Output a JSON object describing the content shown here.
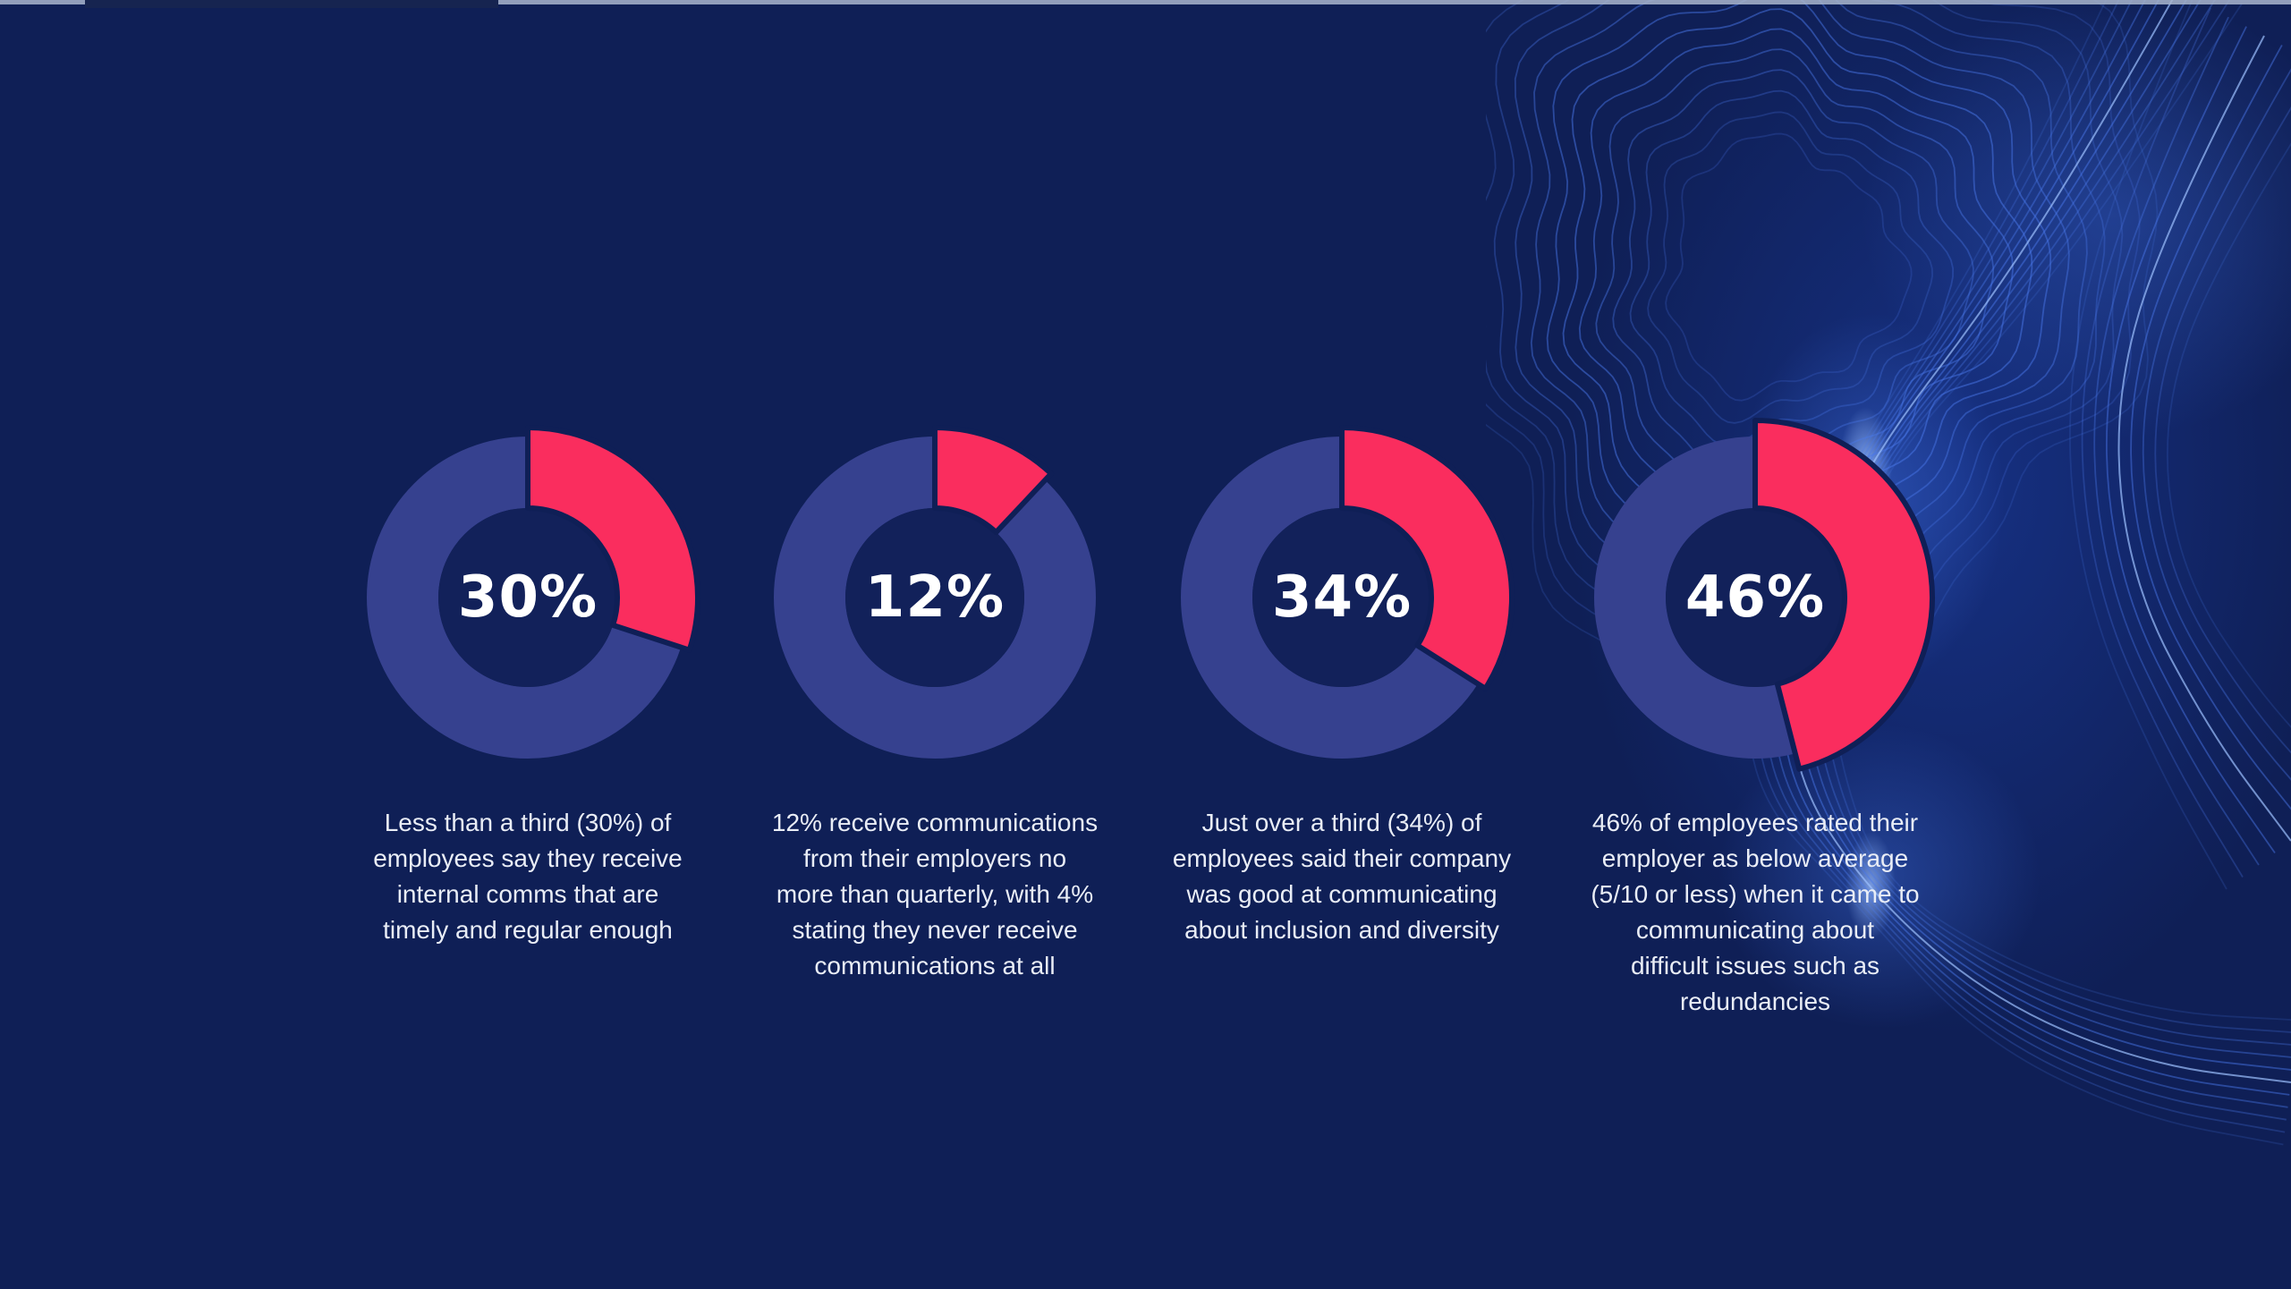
{
  "colors": {
    "background": "#0F1F56",
    "donut_track_blue": "#36418F",
    "donut_highlight_pink": "#FA2D5E",
    "donut_hole": "#12215A",
    "center_label_text": "#FFFFFF",
    "caption_text": "#E9EDF6",
    "wave_line_blue": "#4A78EA",
    "wave_bright_blue": "#9CC0FF",
    "wave_glow_blue": "#1C3FA8",
    "top_strip_light": "#A9B6CE",
    "top_strip_dark": "#18264F"
  },
  "chart_data": [
    {
      "type": "pie",
      "style": "donut",
      "unit": "%",
      "center_label": "30%",
      "labels": [
        "highlighted",
        "remainder"
      ],
      "values": [
        30,
        70
      ],
      "emphasized_slice": false,
      "caption": "Less than a third (30%) of\nemployees say they receive\ninternal comms that are\ntimely and regular enough"
    },
    {
      "type": "pie",
      "style": "donut",
      "unit": "%",
      "center_label": "12%",
      "labels": [
        "highlighted",
        "remainder"
      ],
      "values": [
        12,
        88
      ],
      "emphasized_slice": false,
      "caption": "12% receive communications\nfrom their employers no\nmore than quarterly, with 4%\nstating they never receive\ncommunications at all"
    },
    {
      "type": "pie",
      "style": "donut",
      "unit": "%",
      "center_label": "34%",
      "labels": [
        "highlighted",
        "remainder"
      ],
      "values": [
        34,
        66
      ],
      "emphasized_slice": false,
      "caption": "Just over a third (34%) of\nemployees said their company\nwas good at communicating\nabout inclusion and diversity"
    },
    {
      "type": "pie",
      "style": "donut",
      "unit": "%",
      "center_label": "46%",
      "labels": [
        "highlighted",
        "remainder"
      ],
      "values": [
        46,
        54
      ],
      "emphasized_slice": true,
      "caption": "46% of employees rated their\nemployer as below average\n(5/10 or less) when it came to\ncommunicating about\ndifficult issues such as\nredundancies"
    }
  ]
}
